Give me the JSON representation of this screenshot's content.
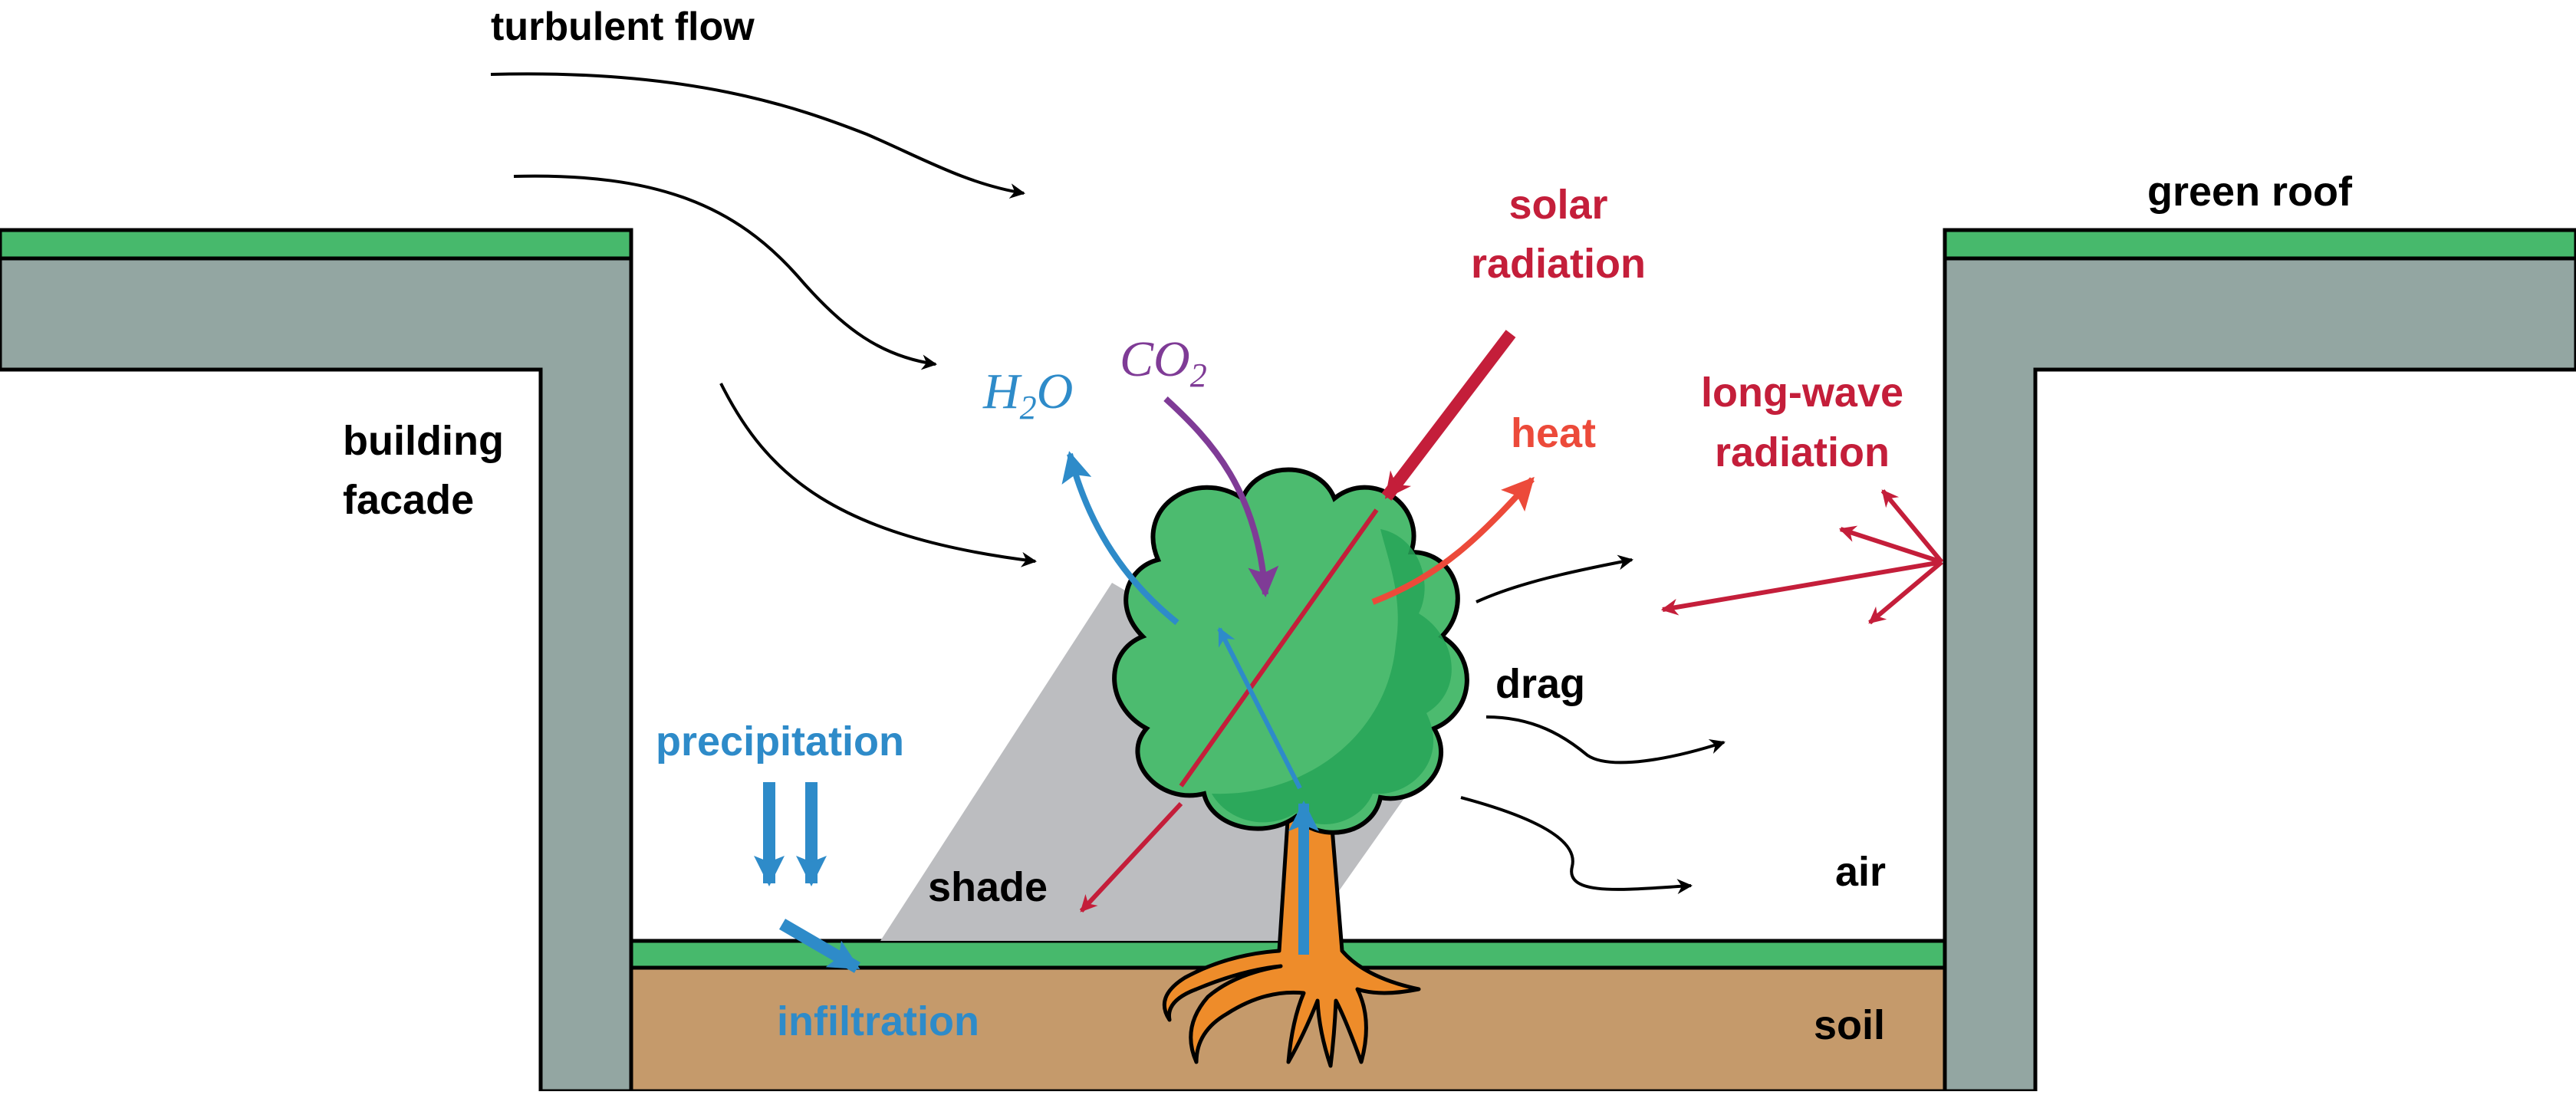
{
  "labels": {
    "turbulent_flow": "turbulent flow",
    "green_roof": "green roof",
    "building_facade_line1": "building",
    "building_facade_line2": "facade",
    "solar_radiation_line1": "solar",
    "solar_radiation_line2": "radiation",
    "heat": "heat",
    "long_wave_line1": "long-wave",
    "long_wave_line2": "radiation",
    "h2o_main": "H",
    "h2o_sub": "2",
    "h2o_tail": "O",
    "co2_main": "CO",
    "co2_sub": "2",
    "drag": "drag",
    "precipitation": "precipitation",
    "shade": "shade",
    "air": "air",
    "infiltration": "infiltration",
    "soil": "soil"
  },
  "colors": {
    "building": "#93a6a2",
    "green_layer": "#47b96c",
    "soil": "#c59a6b",
    "shade": "#bcbdc0",
    "tree_crown": "#4cbb6f",
    "tree_crown_dark": "#27a458",
    "trunk": "#ee8c2a",
    "water": "#2e8bc9",
    "co2": "#7f3b96",
    "radiation": "#c41e3a",
    "heat": "#ec4a3a",
    "flow": "#000000"
  }
}
